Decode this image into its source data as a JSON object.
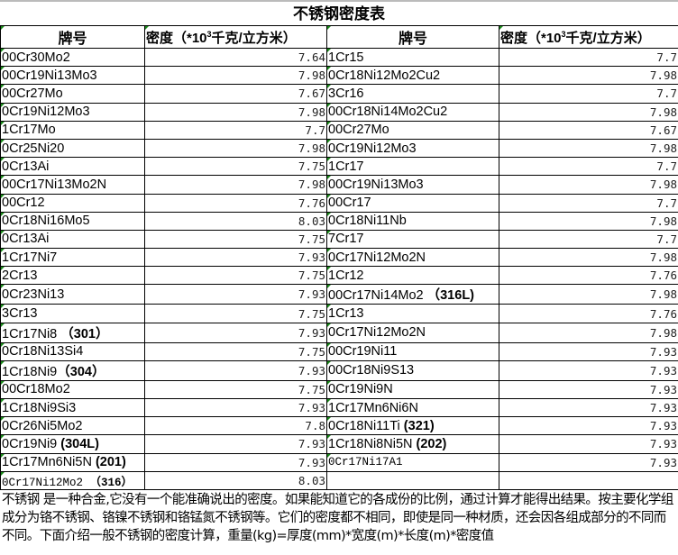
{
  "title": "不锈钢密度表",
  "headers": {
    "name": "牌号",
    "density_prefix": "密度（*10",
    "density_sup": "3",
    "density_suffix": "千克/立方米）"
  },
  "left": [
    {
      "name": "00Cr30Mo2",
      "density": "7.64"
    },
    {
      "name": "00Cr19Ni13Mo3",
      "density": "7.98"
    },
    {
      "name": "00Cr27Mo",
      "density": "7.67"
    },
    {
      "name": "0Cr19Ni12Mo3",
      "density": "7.98"
    },
    {
      "name": "1Cr17Mo",
      "density": "7.7"
    },
    {
      "name": "0Cr25Ni20",
      "density": "7.98"
    },
    {
      "name": "0Cr13Ai",
      "density": "7.75"
    },
    {
      "name": "00Cr17Ni13Mo2N",
      "density": "7.98"
    },
    {
      "name": "00Cr12",
      "density": "7.76"
    },
    {
      "name": "0Cr18Ni16Mo5",
      "density": "8.03"
    },
    {
      "name": "0Cr13Ai",
      "density": "7.75"
    },
    {
      "name": "1Cr17Ni7",
      "density": "7.93"
    },
    {
      "name": "2Cr13",
      "density": "7.75"
    },
    {
      "name": "0Cr23Ni13",
      "density": "7.93"
    },
    {
      "name": "3Cr13",
      "density": "7.75"
    },
    {
      "name": "1Cr17Ni8",
      "tag": " （301）",
      "density": "7.93"
    },
    {
      "name": "0Cr18Ni13Si4",
      "density": "7.75"
    },
    {
      "name": "1Cr18Ni9",
      "tag": "（304）",
      "density": "7.93"
    },
    {
      "name": "00Cr18Mo2",
      "density": "7.75"
    },
    {
      "name": "1Cr18Ni9Si3",
      "density": "7.93"
    },
    {
      "name": "0Cr26Ni5Mo2",
      "density": "7.8"
    },
    {
      "name": "0Cr19Ni9",
      "tag": " (304L)",
      "density": "7.93"
    },
    {
      "name": "1Cr17Mn6Ni5N",
      "tag": " (201)",
      "density": "7.93"
    },
    {
      "name": "0Cr17Ni12Mo2",
      "tag": " （316）",
      "density": "8.03",
      "mono": true
    }
  ],
  "right": [
    {
      "name": "1Cr15",
      "density": "7.7"
    },
    {
      "name": "0Cr18Ni12Mo2Cu2",
      "density": "7.98"
    },
    {
      "name": "3Cr16",
      "density": "7.7"
    },
    {
      "name": "00Cr18Ni14Mo2Cu2",
      "density": "7.98"
    },
    {
      "name": "00Cr27Mo",
      "density": "7.67"
    },
    {
      "name": "0Cr19Ni12Mo3",
      "density": "7.98"
    },
    {
      "name": "1Cr17",
      "density": "7.7"
    },
    {
      "name": "00Cr19Ni13Mo3",
      "density": "7.98"
    },
    {
      "name": "00Cr17",
      "density": "7.7"
    },
    {
      "name": "0Cr18Ni11Nb",
      "density": "7.98"
    },
    {
      "name": "7Cr17",
      "density": "7.7"
    },
    {
      "name": "0Cr17Ni12Mo2N",
      "density": "7.98"
    },
    {
      "name": "1Cr12",
      "density": "7.76"
    },
    {
      "name": "00Cr17Ni14Mo2",
      "tag": " （316L)",
      "density": "7.98"
    },
    {
      "name": "1Cr13",
      "density": "7.76"
    },
    {
      "name": "0Cr17Ni12Mo2N",
      "density": "7.98"
    },
    {
      "name": "00Cr19Ni11",
      "density": "7.93"
    },
    {
      "name": "00Cr18Ni9S13",
      "density": "7.93"
    },
    {
      "name": "0Cr19Ni9N",
      "density": "7.93"
    },
    {
      "name": "1Cr17Mn6Ni6N",
      "density": "7.93"
    },
    {
      "name": "0Cr18Ni11Ti",
      "tag": " (321)",
      "density": "7.93"
    },
    {
      "name": "1Cr18Ni8Ni5N",
      "tag": " (202)",
      "density": "7.93"
    },
    {
      "name": "0Cr17Ni17A1",
      "density": "7.93",
      "mono": true
    },
    {
      "name": "",
      "density": ""
    }
  ],
  "note": "不锈钢 是一种合金,它没有一个能准确说出的密度。如果能知道它的各成份的比例，通过计算才能得出结果。按主要化学组成分为铬不锈钢、铬镍不锈钢和铬锰氮不锈钢等。它们的密度都不相同，即使是同一种材质，还会因各组成部分的不同而不同。下面介绍一般不锈钢的密度计算，重量(kg)=厚度(mm)*宽度(m)*长度(m)*密度值"
}
